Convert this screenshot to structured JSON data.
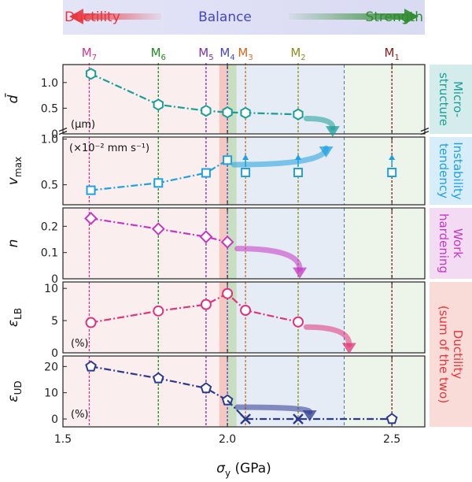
{
  "banner": {
    "left": "Ductility",
    "center": "Balance",
    "right": "Strength",
    "left_color": "#e8343a",
    "center_color": "#4444cc",
    "right_color": "#2e8b2e"
  },
  "materials": [
    {
      "name": "M",
      "sub": "7",
      "x": 1.58,
      "color": "#d6338a"
    },
    {
      "name": "M",
      "sub": "6",
      "x": 1.79,
      "color": "#1e8c1e"
    },
    {
      "name": "M",
      "sub": "5",
      "x": 1.935,
      "color": "#7b2fa6"
    },
    {
      "name": "M",
      "sub": "4",
      "x": 2.0,
      "color": "#4444cc"
    },
    {
      "name": "M",
      "sub": "3",
      "x": 2.055,
      "color": "#d2691e"
    },
    {
      "name": "M",
      "sub": "2",
      "x": 2.215,
      "color": "#8c8c1a"
    },
    {
      "name": "M",
      "sub": "1",
      "x": 2.5,
      "color": "#8b1a1a"
    }
  ],
  "region_colors": {
    "ductility": "#fbeeee",
    "balance_left": "#f4c7c0",
    "balance_right": "#c7dfc0",
    "mid": "#e6ecf5",
    "strength": "#edf5ea",
    "boundary_line": "#4a72b5"
  },
  "panel_labels": [
    {
      "text": "Micro-\nstructure",
      "color": "#1a9e96",
      "bg": "#d5ecec"
    },
    {
      "text": "Instability\ntendency",
      "color": "#1fa0e0",
      "bg": "#d7eefa"
    },
    {
      "text": "Work\nhardening",
      "color": "#c536c5",
      "bg": "#f3dcf3"
    },
    {
      "text": "Ductility\n(sum of the two)",
      "color": "#e8343a",
      "bg": "#f9dcd8"
    }
  ],
  "chart_data": [
    {
      "type": "line",
      "ylabel": "d̄",
      "unit": "(μm)",
      "ylim": [
        0,
        1.35
      ],
      "yticks": [
        0,
        0.5,
        1.0
      ],
      "yticklabels": [
        "0",
        "0.5",
        "1.0"
      ],
      "color": "#1a9e96",
      "marker": "hexagon",
      "x": [
        1.585,
        1.79,
        1.935,
        2.0,
        2.055,
        2.215
      ],
      "y": [
        1.17,
        0.57,
        0.45,
        0.42,
        0.41,
        0.38
      ]
    },
    {
      "type": "line",
      "ylabel": "v",
      "ylabel_sub": "max",
      "unit": "(×10⁻² mm s⁻¹)",
      "yticks": [
        "0.5",
        "1.0"
      ],
      "yticklabels": [
        "0.5",
        "1.0"
      ],
      "color": "#1fa0e0",
      "marker": "square",
      "x": [
        1.585,
        1.79,
        1.935,
        2.0
      ],
      "y": [
        0.44,
        0.52,
        0.63,
        0.77
      ],
      "offscale_x": [
        2.055,
        2.215,
        2.5
      ]
    },
    {
      "type": "line",
      "ylabel": "n",
      "unit": "",
      "ylim": [
        0,
        0.27
      ],
      "yticks": [
        0,
        0.1,
        0.2
      ],
      "yticklabels": [
        "0",
        "0.1",
        "0.2"
      ],
      "color": "#c536c5",
      "marker": "diamond",
      "x": [
        1.585,
        1.79,
        1.935,
        2.0
      ],
      "y": [
        0.23,
        0.19,
        0.16,
        0.14
      ]
    },
    {
      "type": "line",
      "ylabel": "ε",
      "ylabel_sub": "LB",
      "unit": "(%)",
      "ylim": [
        0,
        11
      ],
      "yticks": [
        0,
        5,
        10
      ],
      "yticklabels": [
        "0",
        "5",
        "10"
      ],
      "color": "#e0337a",
      "marker": "circle",
      "x": [
        1.585,
        1.79,
        1.935,
        2.0,
        2.055,
        2.215
      ],
      "y": [
        4.7,
        6.5,
        7.5,
        9.2,
        6.6,
        4.8
      ]
    },
    {
      "type": "line",
      "ylabel": "ε",
      "ylabel_sub": "UD",
      "unit": "(%)",
      "ylim": [
        -3,
        24
      ],
      "yticks": [
        0,
        10,
        20
      ],
      "yticklabels": [
        "0",
        "10",
        "20"
      ],
      "color": "#2b3a8f",
      "marker": "pentagon",
      "x": [
        1.585,
        1.79,
        1.935,
        2.0
      ],
      "y": [
        20,
        15.5,
        11.7,
        7.1
      ],
      "zero_cross_x": [
        2.055,
        2.215
      ],
      "end_point": {
        "x": 2.5,
        "y": 0
      }
    }
  ],
  "x_axis": {
    "label": "σ",
    "label_sub": "y",
    "label_unit": "(GPa)",
    "min": 1.5,
    "max": 2.6,
    "ticks": [
      1.5,
      2.0,
      2.5
    ],
    "ticklabels": [
      "1.5",
      "2.0",
      "2.5"
    ]
  }
}
